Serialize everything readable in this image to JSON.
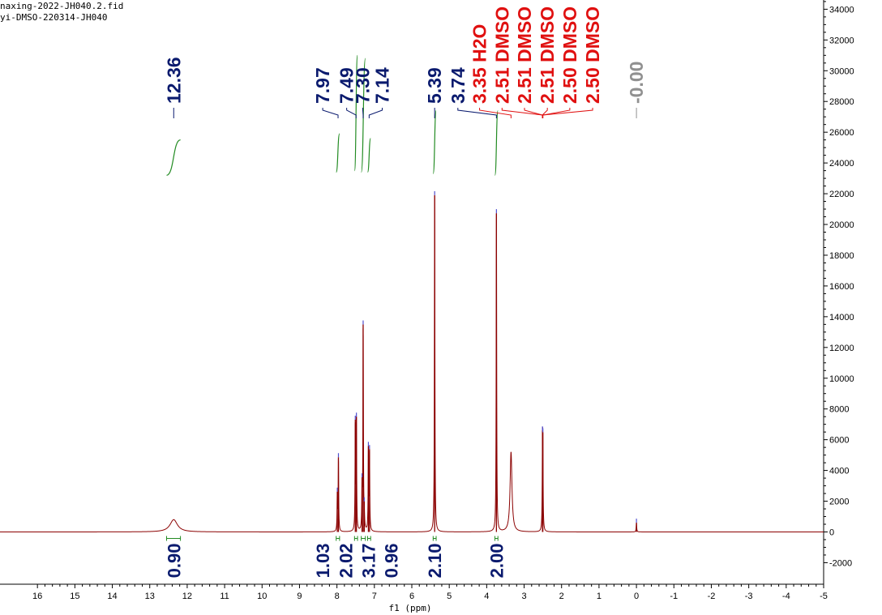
{
  "header": {
    "line1": "naxing-2022-JH040.2.fid",
    "line2": "yi-DMSO-220314-JH040"
  },
  "colors": {
    "spectrum": "#8b0000",
    "integral": "#228b22",
    "peak_label": "#0a1a6e",
    "solvent_label": "#e01010",
    "reference_label": "#909090",
    "axis": "#000000"
  },
  "chart_data": {
    "type": "line",
    "title": "",
    "xlabel": "f1 (ppm)",
    "ylabel": "",
    "xlim": [
      17,
      -5
    ],
    "ylim": [
      -3400,
      34600
    ],
    "x_ticks": [
      16,
      15,
      14,
      13,
      12,
      11,
      10,
      9,
      8,
      7,
      6,
      5,
      4,
      3,
      2,
      1,
      0,
      -1,
      -2,
      -3,
      -4,
      -5
    ],
    "x_tick_labels": [
      "16",
      "15",
      "14",
      "13",
      "12",
      "11",
      "10",
      "9",
      "8",
      "7",
      "6",
      "5",
      "4",
      "3",
      "2",
      "1",
      "0",
      "-1",
      "-2",
      "-3",
      "-4",
      "-5"
    ],
    "y_ticks": [
      34000,
      32000,
      30000,
      28000,
      26000,
      24000,
      22000,
      20000,
      18000,
      16000,
      14000,
      12000,
      10000,
      8000,
      6000,
      4000,
      2000,
      0,
      -2000
    ],
    "y_tick_labels": [
      "34000",
      "32000",
      "30000",
      "28000",
      "26000",
      "24000",
      "22000",
      "20000",
      "18000",
      "16000",
      "14000",
      "12000",
      "10000",
      "8000",
      "6000",
      "4000",
      "2000",
      "0",
      "-2000"
    ],
    "peaks": [
      {
        "ppm": 12.36,
        "height": 800,
        "width": 0.12
      },
      {
        "ppm": 7.99,
        "height": 2300,
        "width": 0.008
      },
      {
        "ppm": 7.96,
        "height": 4700,
        "width": 0.008
      },
      {
        "ppm": 7.51,
        "height": 6800,
        "width": 0.008
      },
      {
        "ppm": 7.48,
        "height": 7000,
        "width": 0.008
      },
      {
        "ppm": 7.33,
        "height": 2600,
        "width": 0.008
      },
      {
        "ppm": 7.3,
        "height": 13200,
        "width": 0.008
      },
      {
        "ppm": 7.27,
        "height": 1000,
        "width": 0.008
      },
      {
        "ppm": 7.16,
        "height": 5200,
        "width": 0.008
      },
      {
        "ppm": 7.13,
        "height": 5000,
        "width": 0.008
      },
      {
        "ppm": 5.39,
        "height": 21900,
        "width": 0.008
      },
      {
        "ppm": 3.74,
        "height": 20700,
        "width": 0.008
      },
      {
        "ppm": 3.35,
        "height": 5200,
        "width": 0.03
      },
      {
        "ppm": 2.51,
        "height": 4800,
        "width": 0.008
      },
      {
        "ppm": 2.5,
        "height": 4600,
        "width": 0.008
      },
      {
        "ppm": 0.0,
        "height": 600,
        "width": 0.008
      }
    ],
    "integrals": [
      {
        "from": 12.55,
        "to": 12.18,
        "value": "0.90",
        "y_start": 23200,
        "y_end": 25500
      },
      {
        "from": 8.02,
        "to": 7.93,
        "value": "1.03",
        "y_start": 23400,
        "y_end": 25900
      },
      {
        "from": 7.53,
        "to": 7.45,
        "value": "2.02",
        "y_start": 23500,
        "y_end": 31000
      },
      {
        "from": 7.35,
        "to": 7.24,
        "value": "3.17",
        "y_start": 23400,
        "y_end": 30800
      },
      {
        "from": 7.18,
        "to": 7.1,
        "value": "0.96",
        "y_start": 23400,
        "y_end": 25600
      },
      {
        "from": 5.43,
        "to": 5.35,
        "value": "2.10",
        "y_start": 23300,
        "y_end": 27400
      },
      {
        "from": 3.78,
        "to": 3.7,
        "value": "2.00",
        "y_start": 23200,
        "y_end": 27400
      }
    ],
    "peak_labels": [
      {
        "text": "12.36",
        "ppm": 12.36,
        "anchor_ppm": 12.36,
        "color": "peak"
      },
      {
        "text": "7.97",
        "ppm": 8.38,
        "anchor_ppm": 7.97,
        "color": "peak"
      },
      {
        "text": "7.49",
        "ppm": 7.74,
        "anchor_ppm": 7.49,
        "color": "peak"
      },
      {
        "text": "7.30",
        "ppm": 7.31,
        "anchor_ppm": 7.3,
        "color": "peak"
      },
      {
        "text": "7.14",
        "ppm": 6.79,
        "anchor_ppm": 7.14,
        "color": "peak"
      },
      {
        "text": "5.39",
        "ppm": 5.39,
        "anchor_ppm": 5.39,
        "color": "peak"
      },
      {
        "text": "3.74",
        "ppm": 4.77,
        "anchor_ppm": 3.74,
        "color": "peak"
      },
      {
        "text": "3.35 H2O",
        "ppm": 4.19,
        "anchor_ppm": 3.35,
        "color": "solvent"
      },
      {
        "text": "2.51 DMSO",
        "ppm": 3.59,
        "anchor_ppm": 2.51,
        "color": "solvent"
      },
      {
        "text": "2.51 DMSO",
        "ppm": 2.99,
        "anchor_ppm": 2.51,
        "color": "solvent"
      },
      {
        "text": "2.51 DMSO",
        "ppm": 2.38,
        "anchor_ppm": 2.51,
        "color": "solvent"
      },
      {
        "text": "2.50 DMSO",
        "ppm": 1.78,
        "anchor_ppm": 2.5,
        "color": "solvent"
      },
      {
        "text": "2.50 DMSO",
        "ppm": 1.17,
        "anchor_ppm": 2.5,
        "color": "solvent"
      },
      {
        "text": "-0.00",
        "ppm": 0.0,
        "anchor_ppm": 0.0,
        "color": "reference"
      }
    ],
    "integral_labels": [
      {
        "text": "0.90",
        "ppm": 12.36
      },
      {
        "text": "1.03",
        "ppm": 8.38
      },
      {
        "text": "2.02",
        "ppm": 7.76
      },
      {
        "text": "3.17",
        "ppm": 7.16
      },
      {
        "text": "0.96",
        "ppm": 6.55
      },
      {
        "text": "2.10",
        "ppm": 5.39
      },
      {
        "text": "2.00",
        "ppm": 3.74
      }
    ]
  }
}
